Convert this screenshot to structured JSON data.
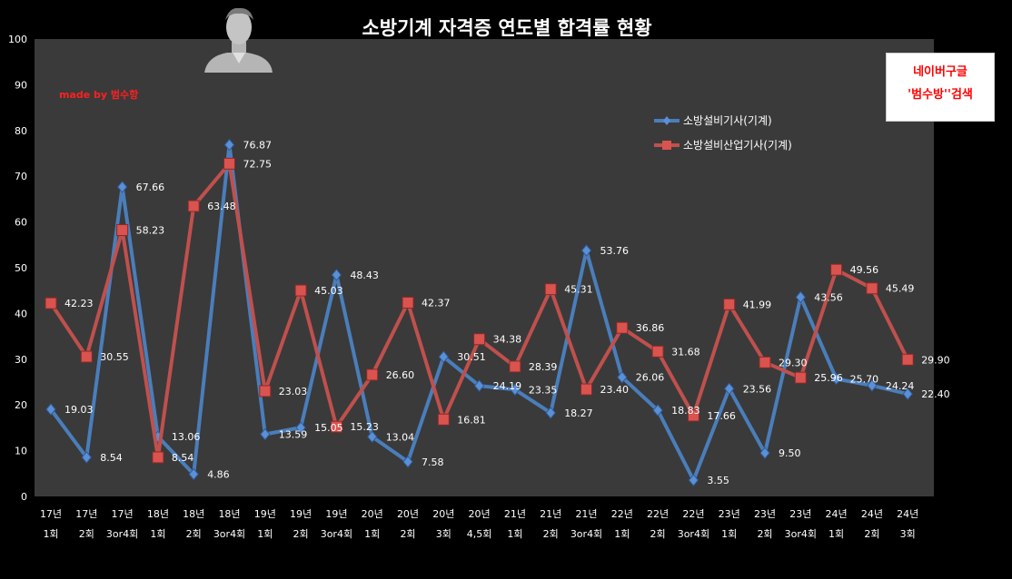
{
  "chart_data": {
    "type": "line",
    "title": "소방기계 자격증 연도별 합격률 현황",
    "ylim": [
      0,
      100
    ],
    "yticks": [
      0,
      10,
      20,
      30,
      40,
      50,
      60,
      70,
      80,
      90,
      100
    ],
    "grid": false,
    "legend_position": "top-right",
    "categories": [
      [
        "17년",
        "1회"
      ],
      [
        "17년",
        "2회"
      ],
      [
        "17년",
        "3or4회"
      ],
      [
        "18년",
        "1회"
      ],
      [
        "18년",
        "2회"
      ],
      [
        "18년",
        "3or4회"
      ],
      [
        "19년",
        "1회"
      ],
      [
        "19년",
        "2회"
      ],
      [
        "19년",
        "3or4회"
      ],
      [
        "20년",
        "1회"
      ],
      [
        "20년",
        "2회"
      ],
      [
        "20년",
        "3회"
      ],
      [
        "20년",
        "4,5회"
      ],
      [
        "21년",
        "1회"
      ],
      [
        "21년",
        "2회"
      ],
      [
        "21년",
        "3or4회"
      ],
      [
        "22년",
        "1회"
      ],
      [
        "22년",
        "2회"
      ],
      [
        "22년",
        "3or4회"
      ],
      [
        "23년",
        "1회"
      ],
      [
        "23년",
        "2회"
      ],
      [
        "23년",
        "3or4회"
      ],
      [
        "24년",
        "1회"
      ],
      [
        "24년",
        "2회"
      ],
      [
        "24년",
        "3회"
      ]
    ],
    "series": [
      {
        "name": "소방설비기사(기계)",
        "color": "#4a7ebb",
        "marker": "diamond",
        "values": [
          19.03,
          8.54,
          67.66,
          13.06,
          4.86,
          76.87,
          13.59,
          15.05,
          48.43,
          13.04,
          7.58,
          30.51,
          24.19,
          23.35,
          18.27,
          53.76,
          26.06,
          18.83,
          3.55,
          23.56,
          9.5,
          43.56,
          25.7,
          24.24,
          22.4
        ],
        "labels": [
          "19.03",
          "8.54",
          "67.66",
          "13.06",
          "4.86",
          "76.87",
          "13.59",
          "15.05",
          "48.43",
          "13.04",
          "7.58",
          "30.51",
          "24.19",
          "23.35",
          "18.27",
          "53.76",
          "26.06",
          "18.83",
          "3.55",
          "23.56",
          "9.50",
          "43.56",
          "25.70",
          "24.24",
          "22.40"
        ]
      },
      {
        "name": "소방설비산업기사(기계)",
        "color": "#c0504d",
        "marker": "square",
        "values": [
          42.23,
          30.55,
          58.23,
          8.54,
          63.48,
          72.75,
          23.03,
          45.03,
          15.23,
          26.6,
          42.37,
          16.81,
          34.38,
          28.39,
          45.31,
          23.4,
          36.86,
          31.68,
          17.66,
          41.99,
          29.3,
          25.96,
          49.56,
          45.49,
          29.9
        ],
        "labels": [
          "42.23",
          "30.55",
          "58.23",
          "8.54",
          "63.48",
          "72.75",
          "23.03",
          "45.03",
          "15.23",
          "26.60",
          "42.37",
          "16.81",
          "34.38",
          "28.39",
          "45.31",
          "23.40",
          "36.86",
          "31.68",
          "17.66",
          "41.99",
          "29.30",
          "25.96",
          "49.56",
          "45.49",
          "29.90"
        ]
      }
    ]
  },
  "credit_text": "made by  범수항",
  "promo": {
    "line1": "네이버구글",
    "line2": "'범수방''검색"
  },
  "avatar_icon": "person-silhouette-icon",
  "colors": {
    "background": "#000000",
    "plot_area": "#3a3a3a",
    "credit": "#ff2020",
    "promo_text": "#ff0000"
  }
}
